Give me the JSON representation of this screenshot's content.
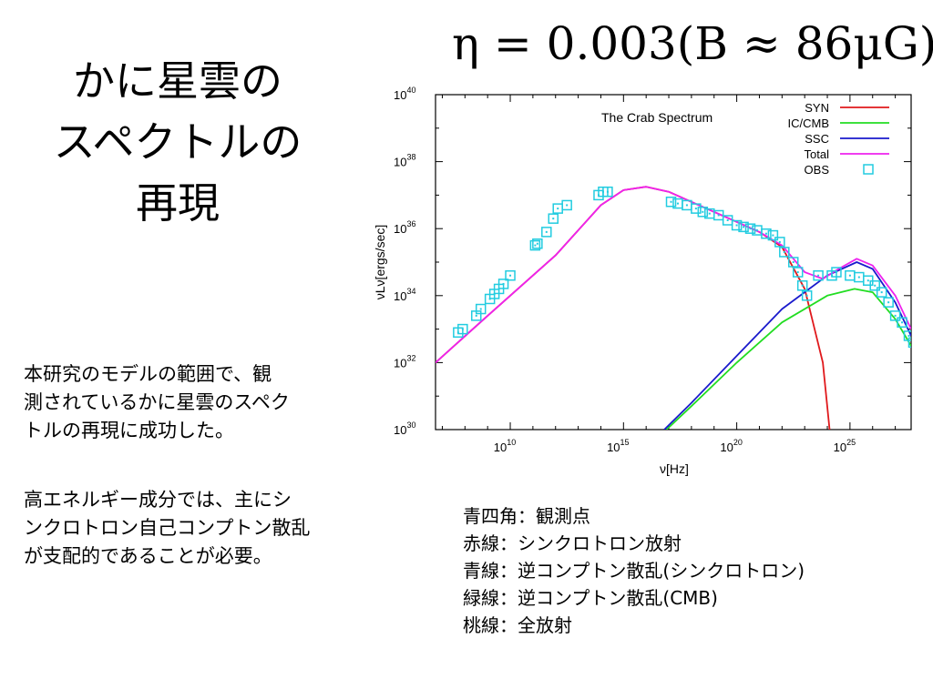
{
  "slide": {
    "title_lines": [
      "かに星雲の",
      "スペクトルの",
      "再現"
    ],
    "formula": "η = 0.003(B ≈ 86μG)",
    "paragraph1_lines": [
      "本研究のモデルの範囲で、観",
      "測されているかに星雲のスペク",
      "トルの再現に成功した。"
    ],
    "paragraph2_lines": [
      "高エネルギー成分では、主にシ",
      "ンクロトロン自己コンプトン散乱",
      "が支配的であることが必要。"
    ],
    "notes": [
      "青四角：観測点",
      "赤線：シンクロトロン放射",
      "青線：逆コンプトン散乱(シンクロトロン)",
      "緑線：逆コンプトン散乱(CMB)",
      "桃線：全放射"
    ]
  },
  "chart_data": {
    "type": "line",
    "title": "The Crab Spectrum",
    "xlabel": "ν[Hz]",
    "ylabel": "νLν[ergs/sec]",
    "xscale": "log",
    "yscale": "log",
    "xlim_log10": [
      6.7,
      27.7
    ],
    "ylim_log10": [
      30,
      40
    ],
    "x_ticks": [
      {
        "exp": 10,
        "label_base": "10",
        "label_exp": "10"
      },
      {
        "exp": 15,
        "label_base": "10",
        "label_exp": "15"
      },
      {
        "exp": 20,
        "label_base": "10",
        "label_exp": "20"
      },
      {
        "exp": 25,
        "label_base": "10",
        "label_exp": "25"
      }
    ],
    "y_ticks": [
      {
        "exp": 30,
        "label_base": "10",
        "label_exp": "30"
      },
      {
        "exp": 32,
        "label_base": "10",
        "label_exp": "32"
      },
      {
        "exp": 34,
        "label_base": "10",
        "label_exp": "34"
      },
      {
        "exp": 36,
        "label_base": "10",
        "label_exp": "36"
      },
      {
        "exp": 38,
        "label_base": "10",
        "label_exp": "38"
      },
      {
        "exp": 40,
        "label_base": "10",
        "label_exp": "40"
      }
    ],
    "legend_position": "top-right",
    "series": [
      {
        "name": "SYN",
        "color": "#e0191c",
        "points": [
          [
            6.7,
            32.0
          ],
          [
            9,
            33.4
          ],
          [
            12,
            35.2
          ],
          [
            14,
            36.7
          ],
          [
            15,
            37.15
          ],
          [
            16,
            37.25
          ],
          [
            17,
            37.1
          ],
          [
            18,
            36.8
          ],
          [
            19,
            36.5
          ],
          [
            20,
            36.2
          ],
          [
            21,
            35.9
          ],
          [
            22,
            35.45
          ],
          [
            23,
            34.2
          ],
          [
            23.8,
            32.0
          ],
          [
            24.1,
            30.0
          ]
        ]
      },
      {
        "name": "IC/CMB",
        "color": "#22dd22",
        "points": [
          [
            16.9,
            30.0
          ],
          [
            18,
            30.7
          ],
          [
            20,
            32.0
          ],
          [
            22,
            33.2
          ],
          [
            24,
            34.0
          ],
          [
            25.2,
            34.2
          ],
          [
            26,
            34.1
          ],
          [
            27,
            33.3
          ],
          [
            27.7,
            32.5
          ]
        ]
      },
      {
        "name": "SSC",
        "color": "#1a1acc",
        "points": [
          [
            16.8,
            30.0
          ],
          [
            18,
            30.8
          ],
          [
            20,
            32.2
          ],
          [
            22,
            33.6
          ],
          [
            24,
            34.6
          ],
          [
            25.3,
            35.0
          ],
          [
            26,
            34.8
          ],
          [
            27,
            33.8
          ],
          [
            27.7,
            32.8
          ]
        ]
      },
      {
        "name": "Total",
        "color": "#ee22ee",
        "points": [
          [
            6.7,
            32.0
          ],
          [
            9,
            33.4
          ],
          [
            12,
            35.2
          ],
          [
            14,
            36.7
          ],
          [
            15,
            37.15
          ],
          [
            16,
            37.25
          ],
          [
            17,
            37.1
          ],
          [
            18,
            36.8
          ],
          [
            19,
            36.5
          ],
          [
            20,
            36.2
          ],
          [
            21,
            35.9
          ],
          [
            22,
            35.5
          ],
          [
            23,
            34.7
          ],
          [
            23.8,
            34.5
          ],
          [
            24.5,
            34.8
          ],
          [
            25.3,
            35.1
          ],
          [
            26,
            34.9
          ],
          [
            27,
            34.0
          ],
          [
            27.7,
            33.0
          ]
        ]
      },
      {
        "name": "OBS",
        "color": "#22cce0",
        "marker": "square",
        "points": [
          [
            7.7,
            32.9
          ],
          [
            7.9,
            33.0
          ],
          [
            8.5,
            33.4
          ],
          [
            8.7,
            33.6
          ],
          [
            9.1,
            33.9
          ],
          [
            9.3,
            34.05
          ],
          [
            9.5,
            34.2
          ],
          [
            9.7,
            34.35
          ],
          [
            10.0,
            34.6
          ],
          [
            11.1,
            35.5
          ],
          [
            11.2,
            35.55
          ],
          [
            11.6,
            35.9
          ],
          [
            11.9,
            36.3
          ],
          [
            12.1,
            36.6
          ],
          [
            12.5,
            36.7
          ],
          [
            13.9,
            37.0
          ],
          [
            14.1,
            37.1
          ],
          [
            14.3,
            37.1
          ],
          [
            17.1,
            36.8
          ],
          [
            17.4,
            36.75
          ],
          [
            17.8,
            36.7
          ],
          [
            18.2,
            36.6
          ],
          [
            18.5,
            36.5
          ],
          [
            18.8,
            36.45
          ],
          [
            19.2,
            36.4
          ],
          [
            19.6,
            36.25
          ],
          [
            20.0,
            36.1
          ],
          [
            20.3,
            36.05
          ],
          [
            20.6,
            36.0
          ],
          [
            20.9,
            35.95
          ],
          [
            21.3,
            35.85
          ],
          [
            21.6,
            35.8
          ],
          [
            21.9,
            35.6
          ],
          [
            22.1,
            35.3
          ],
          [
            22.5,
            35.0
          ],
          [
            22.7,
            34.7
          ],
          [
            22.9,
            34.3
          ],
          [
            23.1,
            34.0
          ],
          [
            23.6,
            34.6
          ],
          [
            24.2,
            34.6
          ],
          [
            24.4,
            34.7
          ],
          [
            25.0,
            34.6
          ],
          [
            25.4,
            34.55
          ],
          [
            25.8,
            34.45
          ],
          [
            26.1,
            34.3
          ],
          [
            26.4,
            34.1
          ],
          [
            26.7,
            33.8
          ],
          [
            27.0,
            33.4
          ],
          [
            27.3,
            33.2
          ],
          [
            27.6,
            32.8
          ],
          [
            27.8,
            32.6
          ]
        ]
      }
    ]
  }
}
